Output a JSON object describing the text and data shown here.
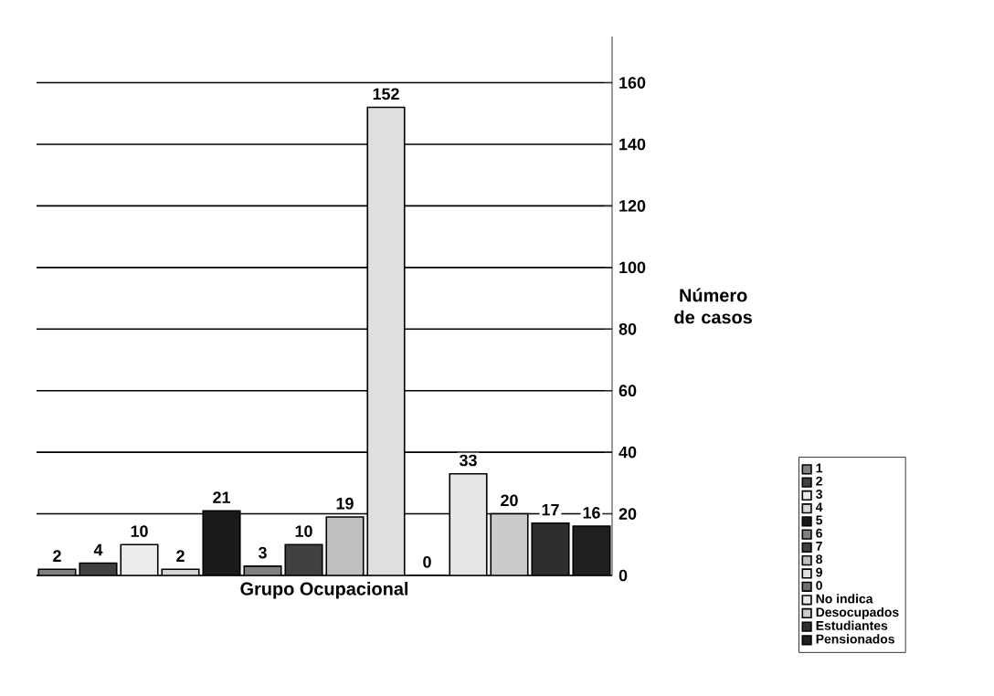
{
  "chart_data": {
    "type": "bar",
    "xlabel": "Grupo Ocupacional",
    "ylabel": "Número de casos",
    "categories": [
      null,
      null,
      null,
      null,
      null,
      null,
      null,
      null,
      null,
      null,
      null,
      null,
      null,
      null
    ],
    "series": [
      {
        "name": "1",
        "color": "#808080",
        "values": [
          2,
          null,
          null,
          null,
          null,
          null,
          null,
          null,
          null,
          null,
          null,
          null,
          null,
          null
        ]
      },
      {
        "name": "2",
        "color": "#404040",
        "values": [
          null,
          4,
          null,
          null,
          null,
          null,
          null,
          null,
          null,
          null,
          null,
          null,
          null,
          null
        ]
      },
      {
        "name": "3",
        "color": "#ececec",
        "values": [
          null,
          null,
          10,
          null,
          null,
          null,
          null,
          null,
          null,
          null,
          null,
          null,
          null,
          null
        ]
      },
      {
        "name": "4",
        "color": "#d6d6d6",
        "values": [
          null,
          null,
          null,
          2,
          null,
          null,
          null,
          null,
          null,
          null,
          null,
          null,
          null,
          null
        ]
      },
      {
        "name": "5",
        "color": "#1a1a1a",
        "values": [
          null,
          null,
          null,
          null,
          21,
          null,
          null,
          null,
          null,
          null,
          null,
          null,
          null,
          null
        ]
      },
      {
        "name": "6",
        "color": "#808080",
        "values": [
          null,
          null,
          null,
          null,
          null,
          3,
          null,
          null,
          null,
          null,
          null,
          null,
          null,
          null
        ]
      },
      {
        "name": "7",
        "color": "#404040",
        "values": [
          null,
          null,
          null,
          null,
          null,
          null,
          10,
          null,
          null,
          null,
          null,
          null,
          null,
          null
        ]
      },
      {
        "name": "8",
        "color": "#c0c0c0",
        "values": [
          null,
          null,
          null,
          null,
          null,
          null,
          null,
          19,
          null,
          null,
          null,
          null,
          null,
          null
        ]
      },
      {
        "name": "9",
        "color": "#dfdfdf",
        "values": [
          null,
          null,
          null,
          null,
          null,
          null,
          null,
          null,
          152,
          null,
          null,
          null,
          null,
          null
        ]
      },
      {
        "name": "0",
        "color": "#6e6e6e",
        "values": [
          null,
          null,
          null,
          null,
          null,
          null,
          null,
          null,
          null,
          0,
          null,
          null,
          null,
          null
        ]
      },
      {
        "name": "No indica",
        "color": "#e6e6e6",
        "values": [
          null,
          null,
          null,
          null,
          null,
          null,
          null,
          null,
          null,
          null,
          33,
          null,
          null,
          null
        ]
      },
      {
        "name": "Desocupados",
        "color": "#cbcbcb",
        "values": [
          null,
          null,
          null,
          null,
          null,
          null,
          null,
          null,
          null,
          null,
          null,
          20,
          null,
          null
        ]
      },
      {
        "name": "Estudiantes",
        "color": "#2e2e2e",
        "values": [
          null,
          null,
          null,
          null,
          null,
          null,
          null,
          null,
          null,
          null,
          null,
          null,
          17,
          null
        ]
      },
      {
        "name": "Pensionados",
        "color": "#202020",
        "values": [
          null,
          null,
          null,
          null,
          null,
          null,
          null,
          null,
          null,
          null,
          null,
          null,
          null,
          16
        ]
      }
    ],
    "ylim": [
      0,
      175
    ],
    "yticks": [
      0,
      20,
      40,
      60,
      80,
      100,
      120,
      140,
      160
    ],
    "grid": "y",
    "legend": "bottom right",
    "tick_labels": "y",
    "data_labels": true
  }
}
